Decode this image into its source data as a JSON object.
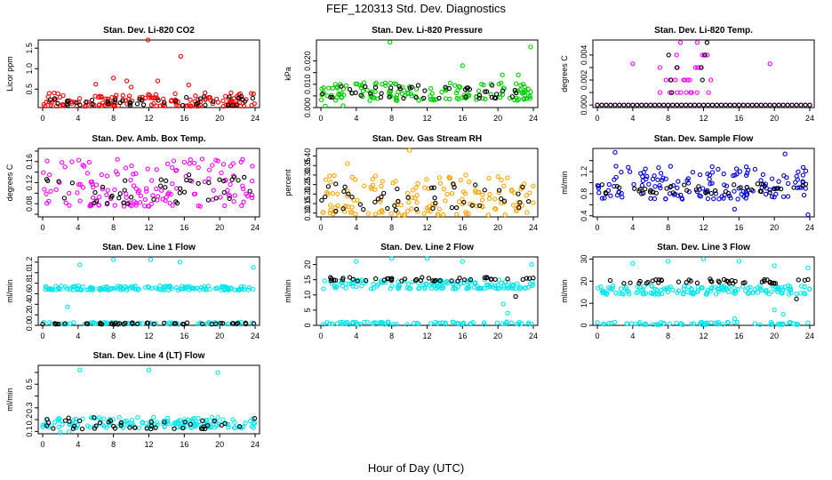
{
  "figure": {
    "title": "FEF_120313  Std. Dev. Diagnostics",
    "xlabel": "Hour of Day (UTC)"
  },
  "chart_data": [
    {
      "type": "scatter",
      "title": "Stan. Dev. Li-820 CO2",
      "xlabel": "",
      "ylabel": "Licor ppm",
      "xlim": [
        0,
        24
      ],
      "ylim": [
        0.05,
        1.7
      ],
      "xticks": [
        0,
        4,
        8,
        12,
        16,
        20,
        24
      ],
      "yticks": [
        0.5,
        1.0,
        1.5
      ],
      "ytick_labels": [
        "0.5",
        "1.0",
        "1.5"
      ],
      "grid": false,
      "series": [
        {
          "color": "#ff0000",
          "marker": "open-circle",
          "band": [
            0.08,
            0.42
          ],
          "outliers": [
            [
              6,
              0.62
            ],
            [
              8,
              0.77
            ],
            [
              10,
              0.55
            ],
            [
              11.9,
              1.7
            ],
            [
              13,
              0.7
            ],
            [
              15.6,
              1.3
            ],
            [
              16.5,
              0.6
            ],
            [
              9.5,
              0.7
            ]
          ]
        },
        {
          "color": "#000000",
          "marker": "open-circle",
          "band": [
            0.1,
            0.32
          ]
        }
      ]
    },
    {
      "type": "scatter",
      "title": "Stan. Dev. Li-820 Pressure",
      "xlabel": "",
      "ylabel": "kPa",
      "xlim": [
        0,
        24
      ],
      "ylim": [
        0,
        0.029
      ],
      "xticks": [
        0,
        4,
        8,
        12,
        16,
        20,
        24
      ],
      "yticks": [
        0.0,
        0.005,
        0.01,
        0.015,
        0.02
      ],
      "ytick_labels": [
        "0.000",
        "",
        "0.010",
        "",
        "0.020"
      ],
      "grid": false,
      "series": [
        {
          "color": "#00cc00",
          "marker": "open-circle",
          "band": [
            0.003,
            0.011
          ],
          "outliers": [
            [
              7.8,
              0.028
            ],
            [
              16,
              0.018
            ],
            [
              20.5,
              0.014
            ],
            [
              22.3,
              0.014
            ],
            [
              23.7,
              0.026
            ],
            [
              0.5,
              0.0006
            ],
            [
              2.5,
              0.0008
            ]
          ]
        },
        {
          "color": "#000000",
          "marker": "open-circle",
          "band": [
            0.004,
            0.01
          ]
        }
      ]
    },
    {
      "type": "scatter",
      "title": "Stan. Dev. Li-820 Temp.",
      "xlabel": "",
      "ylabel": "degrees C",
      "xlim": [
        0,
        24
      ],
      "ylim": [
        -0.0002,
        0.0052
      ],
      "xticks": [
        0,
        4,
        8,
        12,
        16,
        20,
        24
      ],
      "yticks": [
        0.0,
        0.001,
        0.002,
        0.003,
        0.004
      ],
      "ytick_labels": [
        "0.000",
        "",
        "0.002",
        "",
        "0.004"
      ],
      "grid": false,
      "series": [
        {
          "color": "#ff00ff",
          "marker": "open-circle",
          "note": "baseline at 0 with discrete levels 0.001–0.005 near hours 7–13",
          "outliers": [
            [
              4,
              0.0033
            ],
            [
              19.5,
              0.0033
            ]
          ]
        },
        {
          "color": "#000000",
          "marker": "open-circle",
          "note": "baseline at 0 with a few points near hour 12"
        }
      ]
    },
    {
      "type": "scatter",
      "title": "Stan. Dev. Amb. Box Temp.",
      "xlabel": "",
      "ylabel": "degrees C",
      "xlim": [
        0,
        24
      ],
      "ylim": [
        0.055,
        0.185
      ],
      "xticks": [
        0,
        4,
        8,
        12,
        16,
        20,
        24
      ],
      "yticks": [
        0.06,
        0.08,
        0.1,
        0.12,
        0.14,
        0.16,
        0.18
      ],
      "ytick_labels": [
        "",
        "0.08",
        "",
        "0.12",
        "",
        "0.16",
        ""
      ],
      "grid": false,
      "series": [
        {
          "color": "#ff00ff",
          "marker": "open-circle",
          "band": [
            0.075,
            0.165
          ]
        },
        {
          "color": "#000000",
          "marker": "open-circle",
          "band": [
            0.08,
            0.135
          ]
        }
      ]
    },
    {
      "type": "scatter",
      "title": "Stan. Dev. Gas Stream RH",
      "xlabel": "",
      "ylabel": "percent",
      "xlim": [
        0,
        24
      ],
      "ylim": [
        0.08,
        0.44
      ],
      "xticks": [
        0,
        4,
        8,
        12,
        16,
        20,
        24
      ],
      "yticks": [
        0.1,
        0.15,
        0.2,
        0.25,
        0.3,
        0.35,
        0.4
      ],
      "ytick_labels": [
        "0.10",
        "0.15",
        "0.20",
        "0.25",
        "0.30",
        "0.35",
        "0.40"
      ],
      "grid": false,
      "series": [
        {
          "color": "#ffa500",
          "marker": "open-circle",
          "band": [
            0.09,
            0.3
          ],
          "outliers": [
            [
              10,
              0.43
            ],
            [
              3,
              0.36
            ]
          ]
        },
        {
          "color": "#000000",
          "marker": "open-circle",
          "band": [
            0.11,
            0.26
          ]
        }
      ]
    },
    {
      "type": "scatter",
      "title": "Stan. Dev. Sample Flow",
      "xlabel": "",
      "ylabel": "ml/min",
      "xlim": [
        0,
        24
      ],
      "ylim": [
        0.38,
        1.62
      ],
      "xticks": [
        0,
        4,
        8,
        12,
        16,
        20,
        24
      ],
      "yticks": [
        0.4,
        0.6,
        0.8,
        1.0,
        1.2,
        1.4
      ],
      "ytick_labels": [
        "0.4",
        "",
        "0.8",
        "",
        "1.2",
        ""
      ],
      "grid": false,
      "series": [
        {
          "color": "#0000dd",
          "marker": "open-circle",
          "band": [
            0.7,
            1.3
          ],
          "outliers": [
            [
              2,
              1.55
            ],
            [
              21.2,
              1.52
            ],
            [
              15.5,
              0.52
            ],
            [
              23.8,
              0.42
            ]
          ]
        },
        {
          "color": "#000000",
          "marker": "open-circle",
          "band": [
            0.8,
            0.98
          ]
        }
      ]
    },
    {
      "type": "scatter",
      "title": "Stan. Dev. Line 1 Flow",
      "xlabel": "",
      "ylabel": "ml/min",
      "xlim": [
        0,
        24
      ],
      "ylim": [
        0,
        1.3
      ],
      "xticks": [
        0,
        4,
        8,
        12,
        16,
        20,
        24
      ],
      "yticks": [
        0.0,
        0.2,
        0.4,
        0.6,
        0.8,
        1.0,
        1.2
      ],
      "ytick_labels": [
        "0.0",
        "0.2",
        "0.4",
        "0.6",
        "0.8",
        "1.0",
        "1.2"
      ],
      "grid": false,
      "series": [
        {
          "color": "#00e5ee",
          "marker": "open-circle",
          "bands": [
            [
              0.67,
              0.75
            ],
            [
              0.02,
              0.06
            ]
          ],
          "outliers": [
            [
              4.2,
              1.15
            ],
            [
              8,
              1.25
            ],
            [
              12.2,
              1.25
            ],
            [
              15.5,
              1.2
            ],
            [
              23.8,
              1.1
            ],
            [
              2.8,
              0.35
            ]
          ]
        },
        {
          "color": "#000000",
          "marker": "open-circle",
          "band": [
            0.02,
            0.05
          ]
        }
      ]
    },
    {
      "type": "scatter",
      "title": "Stan. Dev. Line 2 Flow",
      "xlabel": "",
      "ylabel": "ml/min",
      "xlim": [
        0,
        24
      ],
      "ylim": [
        0,
        22.5
      ],
      "xticks": [
        0,
        4,
        8,
        12,
        16,
        20,
        24
      ],
      "yticks": [
        0,
        5,
        10,
        15,
        20
      ],
      "ytick_labels": [
        "0",
        "5",
        "10",
        "15",
        "20"
      ],
      "grid": false,
      "series": [
        {
          "color": "#00e5ee",
          "marker": "open-circle",
          "bands": [
            [
              12,
              15
            ],
            [
              0.3,
              1.2
            ]
          ],
          "outliers": [
            [
              4,
              21
            ],
            [
              8,
              22
            ],
            [
              12,
              22
            ],
            [
              16,
              21
            ],
            [
              23.8,
              20
            ],
            [
              20.6,
              7
            ],
            [
              21.1,
              4
            ]
          ]
        },
        {
          "color": "#000000",
          "marker": "open-circle",
          "band": [
            14.5,
            15.8
          ],
          "outliers": [
            [
              22,
              9.5
            ]
          ]
        }
      ]
    },
    {
      "type": "scatter",
      "title": "Stan. Dev. Line 3 Flow",
      "xlabel": "",
      "ylabel": "ml/min",
      "xlim": [
        0,
        24
      ],
      "ylim": [
        0,
        31
      ],
      "xticks": [
        0,
        4,
        8,
        12,
        16,
        20,
        24
      ],
      "yticks": [
        0,
        10,
        20,
        30
      ],
      "ytick_labels": [
        "0",
        "10",
        "20",
        "30"
      ],
      "grid": false,
      "series": [
        {
          "color": "#00e5ee",
          "marker": "open-circle",
          "bands": [
            [
              14,
              18
            ],
            [
              0.3,
              1.5
            ]
          ],
          "outliers": [
            [
              4,
              28
            ],
            [
              8,
              29
            ],
            [
              12,
              30
            ],
            [
              16,
              29
            ],
            [
              20,
              27
            ],
            [
              23.8,
              26
            ],
            [
              15.5,
              3
            ],
            [
              20,
              7
            ],
            [
              21,
              5
            ]
          ]
        },
        {
          "color": "#000000",
          "marker": "open-circle",
          "band": [
            19,
            21
          ],
          "outliers": [
            [
              22.5,
              12
            ]
          ]
        }
      ]
    },
    {
      "type": "scatter",
      "title": "Stan. Dev. Line 4 (LT) Flow",
      "xlabel": "",
      "ylabel": "ml/min",
      "xlim": [
        0,
        24
      ],
      "ylim": [
        0.08,
        0.66
      ],
      "xticks": [
        0,
        4,
        8,
        12,
        16,
        20,
        24
      ],
      "yticks": [
        0.1,
        0.2,
        0.3,
        0.4,
        0.5,
        0.6
      ],
      "ytick_labels": [
        "0.1",
        "0.2",
        "0.3",
        "",
        "0.5",
        ""
      ],
      "grid": false,
      "series": [
        {
          "color": "#00e5ee",
          "marker": "open-circle",
          "band": [
            0.13,
            0.22
          ],
          "outliers": [
            [
              4.2,
              0.62
            ],
            [
              12,
              0.62
            ],
            [
              19.8,
              0.6
            ],
            [
              2,
              0.09
            ],
            [
              3,
              0.1
            ]
          ]
        },
        {
          "color": "#000000",
          "marker": "open-circle",
          "band": [
            0.12,
            0.22
          ]
        }
      ]
    }
  ]
}
